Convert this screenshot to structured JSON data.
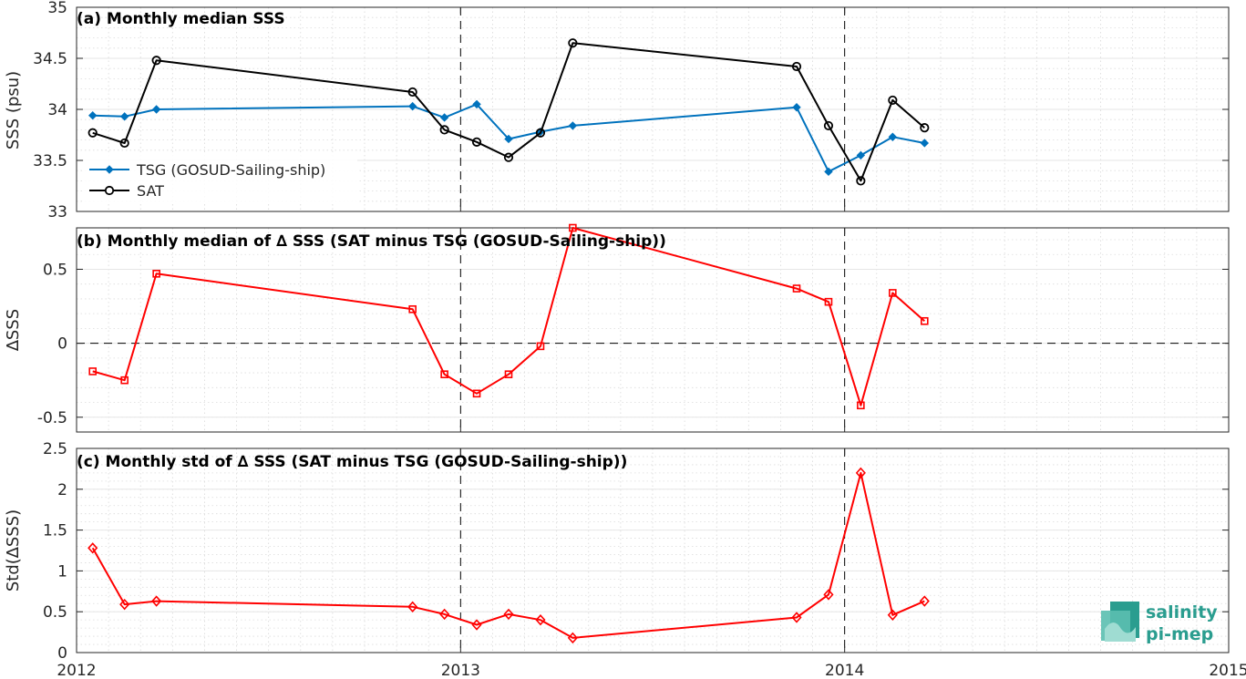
{
  "logo": {
    "line1": "salinity",
    "line2": "pi-mep",
    "color": "#2a9d8f"
  },
  "chart_data": [
    {
      "type": "line",
      "title": "(a) Monthly median SSS",
      "ylabel": "SSS (psu)",
      "xlabel": "",
      "xlim": [
        2012,
        2015
      ],
      "ylim": [
        33,
        35
      ],
      "yticks": [
        33,
        33.5,
        34,
        34.5,
        35
      ],
      "ytick_labels": [
        "33",
        "33.5",
        "34",
        "34.5",
        "35"
      ],
      "xticks": [
        2012,
        2013,
        2014,
        2015
      ],
      "xtick_labels": [],
      "grid": true,
      "legend": "bottom-left",
      "series": [
        {
          "name": "TSG (GOSUD-Sailing-ship)",
          "color": "#0072bd",
          "marker": "diamond-filled",
          "x": [
            2012.042,
            2012.125,
            2012.208,
            2012.875,
            2012.958,
            2013.042,
            2013.125,
            2013.208,
            2013.292,
            2013.875,
            2013.958,
            2014.042,
            2014.125,
            2014.208
          ],
          "values": [
            33.94,
            33.93,
            34.0,
            34.03,
            33.92,
            34.05,
            33.71,
            33.78,
            33.84,
            34.02,
            33.39,
            33.55,
            33.73,
            33.67
          ]
        },
        {
          "name": "SAT",
          "color": "#000000",
          "marker": "circle",
          "x": [
            2012.042,
            2012.125,
            2012.208,
            2012.875,
            2012.958,
            2013.042,
            2013.125,
            2013.208,
            2013.292,
            2013.875,
            2013.958,
            2014.042,
            2014.125,
            2014.208
          ],
          "values": [
            33.77,
            33.67,
            34.48,
            34.17,
            33.8,
            33.68,
            33.53,
            33.77,
            34.65,
            34.42,
            33.84,
            33.3,
            34.09,
            33.82
          ]
        }
      ]
    },
    {
      "type": "line",
      "title": "(b) Monthly median of ∆ SSS (SAT minus TSG (GOSUD-Sailing-ship))",
      "ylabel": "∆SSS",
      "xlabel": "",
      "xlim": [
        2012,
        2015
      ],
      "ylim": [
        -0.6,
        0.78
      ],
      "yticks": [
        -0.5,
        0,
        0.5
      ],
      "ytick_labels": [
        "-0.5",
        "0",
        "0.5"
      ],
      "xticks": [
        2012,
        2013,
        2014,
        2015
      ],
      "xtick_labels": [],
      "grid": true,
      "zero_line": true,
      "series": [
        {
          "color": "#ff0000",
          "marker": "square",
          "x": [
            2012.042,
            2012.125,
            2012.208,
            2012.875,
            2012.958,
            2013.042,
            2013.125,
            2013.208,
            2013.292,
            2013.875,
            2013.958,
            2014.042,
            2014.125,
            2014.208
          ],
          "values": [
            -0.19,
            -0.25,
            0.47,
            0.23,
            -0.21,
            -0.34,
            -0.21,
            -0.02,
            0.78,
            0.37,
            0.28,
            -0.42,
            0.34,
            0.15
          ]
        }
      ]
    },
    {
      "type": "line",
      "title": "(c) Monthly std of ∆ SSS (SAT minus TSG (GOSUD-Sailing-ship))",
      "ylabel": "Std(∆SSS)",
      "xlabel": "",
      "xlim": [
        2012,
        2015
      ],
      "ylim": [
        0,
        2.5
      ],
      "yticks": [
        0,
        0.5,
        1,
        1.5,
        2,
        2.5
      ],
      "ytick_labels": [
        "0",
        "0.5",
        "1",
        "1.5",
        "2",
        "2.5"
      ],
      "xticks": [
        2012,
        2013,
        2014,
        2015
      ],
      "xtick_labels": [
        "2012",
        "2013",
        "2014",
        "2015"
      ],
      "grid": true,
      "series": [
        {
          "color": "#ff0000",
          "marker": "diamond",
          "x": [
            2012.042,
            2012.125,
            2012.208,
            2012.875,
            2012.958,
            2013.042,
            2013.125,
            2013.208,
            2013.292,
            2013.875,
            2013.958,
            2014.042,
            2014.125,
            2014.208
          ],
          "values": [
            1.28,
            0.59,
            0.63,
            0.56,
            0.47,
            0.34,
            0.47,
            0.4,
            0.18,
            0.43,
            0.71,
            2.2,
            0.46,
            0.63
          ]
        }
      ]
    }
  ]
}
